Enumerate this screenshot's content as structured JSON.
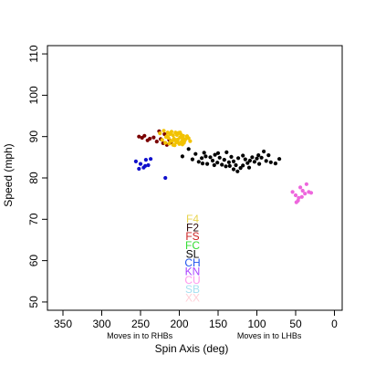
{
  "chart_data": {
    "type": "scatter",
    "title": "",
    "xlabel": "Spin Axis (deg)",
    "ylabel": "Speed (mph)",
    "xlim": [
      370,
      -10
    ],
    "ylim": [
      48,
      112
    ],
    "x_reversed": true,
    "grid": false,
    "x_ticks": [
      "350",
      "300",
      "250",
      "200",
      "150",
      "100",
      "50",
      "0"
    ],
    "y_ticks": [
      "50",
      "60",
      "70",
      "80",
      "90",
      "100",
      "110"
    ],
    "annotations": [
      {
        "text": "Moves in to RHBs",
        "x": 251
      },
      {
        "text": "Moves in to LHBs",
        "x": 84
      }
    ],
    "legend": {
      "placement": "center-bottom",
      "entries": [
        {
          "label": "F4",
          "color": "#E8D44D"
        },
        {
          "label": "F2",
          "color": "#2B0A0A"
        },
        {
          "label": "FS",
          "color": "#CC2222"
        },
        {
          "label": "FC",
          "color": "#33DD33"
        },
        {
          "label": "SL",
          "color": "#000000"
        },
        {
          "label": "CH",
          "color": "#2255EE"
        },
        {
          "label": "KN",
          "color": "#AA44FF"
        },
        {
          "label": "CU",
          "color": "#FF99EE"
        },
        {
          "label": "SB",
          "color": "#A8E0F0"
        },
        {
          "label": "XX",
          "color": "#FFD0D8"
        }
      ]
    },
    "series": [
      {
        "color": "#7A0000",
        "points": [
          [
            252,
            90.0
          ],
          [
            248,
            89.7
          ],
          [
            245,
            90.2
          ],
          [
            241,
            89.1
          ],
          [
            238,
            89.5
          ],
          [
            233,
            89.8
          ],
          [
            229,
            88.8
          ],
          [
            226,
            91.3
          ],
          [
            224,
            89.4
          ],
          [
            221,
            88.4
          ],
          [
            219,
            90.6
          ],
          [
            216,
            88.0
          ],
          [
            213,
            89.2
          ],
          [
            210,
            88.6
          ]
        ]
      },
      {
        "color": "#F2C200",
        "points": [
          [
            225,
            90.8
          ],
          [
            222,
            89.2
          ],
          [
            220,
            91.4
          ],
          [
            218,
            88.5
          ],
          [
            216,
            90.1
          ],
          [
            215,
            91.0
          ],
          [
            214,
            89.7
          ],
          [
            213,
            88.3
          ],
          [
            212,
            90.6
          ],
          [
            211,
            89.0
          ],
          [
            210,
            91.2
          ],
          [
            209,
            88.9
          ],
          [
            208,
            90.3
          ],
          [
            207,
            89.5
          ],
          [
            206,
            87.9
          ],
          [
            205,
            91.0
          ],
          [
            204,
            88.6
          ],
          [
            203,
            90.4
          ],
          [
            202,
            89.3
          ],
          [
            201,
            90.9
          ],
          [
            200,
            88.2
          ],
          [
            199,
            89.8
          ],
          [
            198,
            90.5
          ],
          [
            197,
            88.8
          ],
          [
            196,
            89.6
          ],
          [
            195,
            90.2
          ],
          [
            194,
            88.5
          ],
          [
            192,
            89.4
          ],
          [
            190,
            90.1
          ],
          [
            188,
            89.6
          ],
          [
            186,
            88.9
          ],
          [
            217,
            89.9
          ],
          [
            211,
            90.8
          ],
          [
            205,
            89.2
          ],
          [
            199,
            91.0
          ],
          [
            193,
            89.0
          ],
          [
            208,
            88.0
          ],
          [
            202,
            88.7
          ],
          [
            196,
            88.1
          ]
        ]
      },
      {
        "color": "#000000",
        "points": [
          [
            196,
            85.2
          ],
          [
            188,
            87.0
          ],
          [
            183,
            84.5
          ],
          [
            179,
            85.8
          ],
          [
            175,
            83.9
          ],
          [
            171,
            84.8
          ],
          [
            168,
            86.1
          ],
          [
            164,
            83.4
          ],
          [
            160,
            85.0
          ],
          [
            157,
            84.2
          ],
          [
            154,
            85.6
          ],
          [
            151,
            83.7
          ],
          [
            148,
            84.9
          ],
          [
            145,
            83.2
          ],
          [
            142,
            84.4
          ],
          [
            139,
            86.2
          ],
          [
            136,
            83.8
          ],
          [
            133,
            85.1
          ],
          [
            130,
            84.0
          ],
          [
            127,
            83.1
          ],
          [
            124,
            84.8
          ],
          [
            121,
            82.4
          ],
          [
            118,
            85.4
          ],
          [
            115,
            84.5
          ],
          [
            112,
            83.6
          ],
          [
            109,
            84.2
          ],
          [
            106,
            85.0
          ],
          [
            103,
            83.9
          ],
          [
            100,
            84.7
          ],
          [
            97,
            83.4
          ],
          [
            94,
            84.9
          ],
          [
            91,
            86.4
          ],
          [
            88,
            84.1
          ],
          [
            85,
            85.5
          ],
          [
            82,
            83.8
          ],
          [
            76,
            83.5
          ],
          [
            71,
            84.6
          ],
          [
            140,
            82.8
          ],
          [
            125,
            81.6
          ],
          [
            155,
            83.1
          ],
          [
            110,
            82.5
          ],
          [
            170,
            83.5
          ],
          [
            135,
            82.9
          ],
          [
            118,
            83.0
          ],
          [
            98,
            85.5
          ],
          [
            166,
            85.2
          ],
          [
            150,
            86.0
          ],
          [
            130,
            82.1
          ]
        ]
      },
      {
        "color": "#1010CC",
        "points": [
          [
            256,
            84.0
          ],
          [
            250,
            83.4
          ],
          [
            246,
            82.5
          ],
          [
            243,
            84.4
          ],
          [
            240,
            83.1
          ],
          [
            237,
            84.6
          ],
          [
            252,
            82.2
          ],
          [
            244,
            82.9
          ],
          [
            218,
            80.0
          ]
        ]
      },
      {
        "color": "#EE66DD",
        "points": [
          [
            54,
            76.6
          ],
          [
            50,
            75.8
          ],
          [
            47,
            74.5
          ],
          [
            44,
            77.7
          ],
          [
            41,
            76.9
          ],
          [
            38,
            76.2
          ],
          [
            36,
            78.5
          ],
          [
            33,
            76.6
          ],
          [
            49,
            74.1
          ],
          [
            42,
            75.4
          ],
          [
            30,
            76.4
          ],
          [
            46,
            75.2
          ]
        ]
      }
    ]
  }
}
